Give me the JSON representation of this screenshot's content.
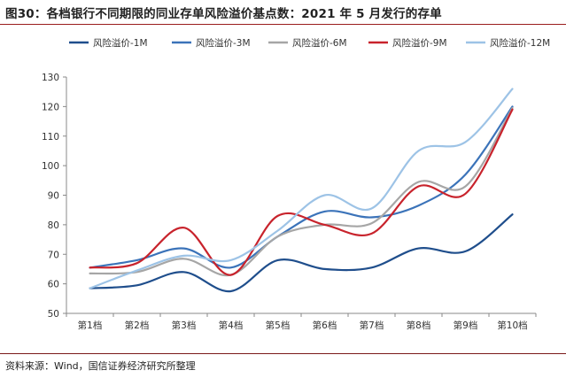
{
  "figure_title": "图30：各档银行不同期限的同业存单风险溢价基点数：2021 年 5 月发行的存单",
  "source_note": "资料来源：Wind，国信证券经济研究所整理",
  "chart_data": {
    "type": "line",
    "categories": [
      "第1档",
      "第2档",
      "第3档",
      "第4档",
      "第5档",
      "第6档",
      "第7档",
      "第8档",
      "第9档",
      "第10档"
    ],
    "ylim": [
      50,
      130
    ],
    "yticks": [
      50,
      60,
      70,
      80,
      90,
      100,
      110,
      120,
      130
    ],
    "grid": false,
    "legend_position": "top",
    "series": [
      {
        "name": "风险溢价-1M",
        "color": "#1f4e8c",
        "values": [
          58.5,
          59.5,
          64,
          57.5,
          68,
          65,
          65.5,
          72,
          71,
          83.5
        ]
      },
      {
        "name": "风险溢价-3M",
        "color": "#3b73b9",
        "values": [
          65.5,
          68,
          72,
          65.5,
          76,
          84.5,
          82.5,
          86.5,
          97,
          120
        ]
      },
      {
        "name": "风险溢价-6M",
        "color": "#a6a6a6",
        "values": [
          63.5,
          64,
          68.5,
          63,
          76,
          80,
          80.5,
          94.5,
          93,
          119.5
        ]
      },
      {
        "name": "风险溢价-9M",
        "color": "#c8232c",
        "values": [
          65.5,
          67,
          79,
          63,
          83,
          80,
          77,
          93,
          90.5,
          119
        ]
      },
      {
        "name": "风险溢价-12M",
        "color": "#9dc3e6",
        "values": [
          58.5,
          64.5,
          69.5,
          68,
          78,
          90,
          85.5,
          105,
          108,
          126
        ]
      }
    ]
  }
}
